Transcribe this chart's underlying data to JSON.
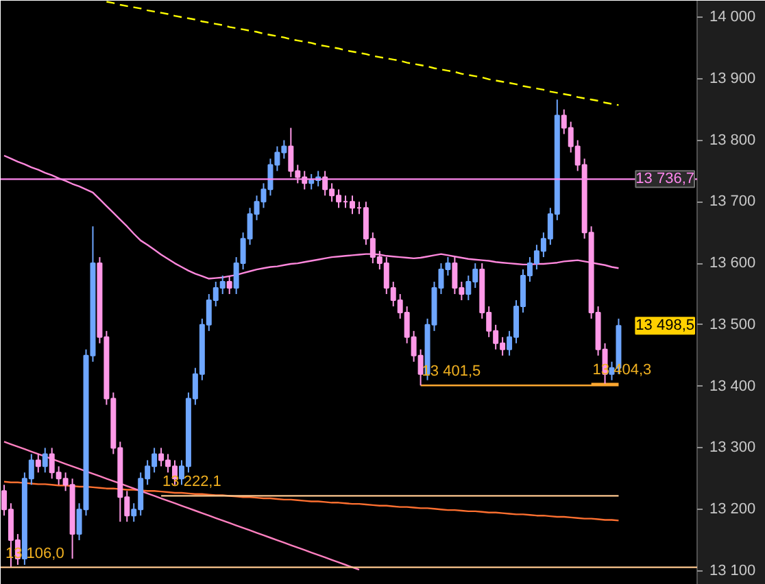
{
  "chart_data": {
    "type": "candlestick",
    "categories": [
      null,
      null,
      null,
      null,
      null,
      null,
      null,
      null,
      null,
      null,
      null,
      null,
      null,
      null,
      null,
      null,
      null,
      null,
      null,
      null,
      null,
      null,
      null,
      null,
      null,
      null,
      null,
      null,
      null,
      null,
      null,
      null,
      null,
      null,
      null,
      null,
      null,
      null,
      null,
      null,
      null,
      null,
      null,
      null,
      null,
      null,
      null,
      null,
      null,
      null,
      null,
      null,
      null,
      null,
      null,
      null,
      null,
      null,
      null,
      null,
      null,
      null,
      null,
      null,
      null,
      null,
      null,
      null,
      null,
      null,
      null,
      null,
      null,
      null,
      null,
      null,
      null,
      null,
      null,
      null,
      null,
      null,
      null,
      null,
      null,
      null,
      null,
      null,
      null,
      null,
      null
    ],
    "ohlc": [
      [
        13230,
        13240,
        13190,
        13200
      ],
      [
        13200,
        13210,
        13106,
        13150
      ],
      [
        13150,
        13160,
        13110,
        13120
      ],
      [
        13120,
        13260,
        13110,
        13250
      ],
      [
        13250,
        13290,
        13240,
        13280
      ],
      [
        13280,
        13290,
        13260,
        13270
      ],
      [
        13270,
        13300,
        13260,
        13290
      ],
      [
        13290,
        13300,
        13250,
        13260
      ],
      [
        13260,
        13270,
        13240,
        13250
      ],
      [
        13250,
        13260,
        13230,
        13240
      ],
      [
        13240,
        13250,
        13120,
        13160
      ],
      [
        13160,
        13210,
        13150,
        13200
      ],
      [
        13200,
        13460,
        13190,
        13450
      ],
      [
        13450,
        13660,
        13440,
        13600
      ],
      [
        13600,
        13610,
        13470,
        13480
      ],
      [
        13480,
        13490,
        13370,
        13380
      ],
      [
        13380,
        13390,
        13290,
        13300
      ],
      [
        13300,
        13310,
        13180,
        13220
      ],
      [
        13220,
        13230,
        13180,
        13190
      ],
      [
        13190,
        13210,
        13180,
        13200
      ],
      [
        13200,
        13260,
        13190,
        13250
      ],
      [
        13250,
        13280,
        13240,
        13270
      ],
      [
        13270,
        13300,
        13260,
        13290
      ],
      [
        13290,
        13300,
        13270,
        13280
      ],
      [
        13280,
        13290,
        13260,
        13270
      ],
      [
        13270,
        13280,
        13240,
        13250
      ],
      [
        13250,
        13280,
        13240,
        13270
      ],
      [
        13270,
        13390,
        13260,
        13380
      ],
      [
        13380,
        13430,
        13370,
        13420
      ],
      [
        13420,
        13510,
        13410,
        13500
      ],
      [
        13500,
        13550,
        13490,
        13540
      ],
      [
        13540,
        13570,
        13530,
        13560
      ],
      [
        13560,
        13580,
        13550,
        13570
      ],
      [
        13570,
        13580,
        13550,
        13560
      ],
      [
        13560,
        13610,
        13550,
        13600
      ],
      [
        13600,
        13650,
        13590,
        13640
      ],
      [
        13640,
        13690,
        13630,
        13680
      ],
      [
        13680,
        13710,
        13670,
        13700
      ],
      [
        13700,
        13730,
        13690,
        13720
      ],
      [
        13720,
        13770,
        13710,
        13760
      ],
      [
        13760,
        13790,
        13750,
        13780
      ],
      [
        13780,
        13800,
        13770,
        13790
      ],
      [
        13790,
        13820,
        13740,
        13750
      ],
      [
        13750,
        13760,
        13730,
        13740
      ],
      [
        13740,
        13750,
        13720,
        13730
      ],
      [
        13730,
        13745,
        13720,
        13735
      ],
      [
        13735,
        13750,
        13725,
        13740
      ],
      [
        13740,
        13750,
        13710,
        13720
      ],
      [
        13720,
        13730,
        13700,
        13710
      ],
      [
        13710,
        13720,
        13690,
        13700
      ],
      [
        13700,
        13710,
        13690,
        13700
      ],
      [
        13700,
        13710,
        13680,
        13690
      ],
      [
        13690,
        13700,
        13680,
        13690
      ],
      [
        13690,
        13700,
        13630,
        13640
      ],
      [
        13640,
        13650,
        13600,
        13610
      ],
      [
        13610,
        13620,
        13590,
        13600
      ],
      [
        13600,
        13610,
        13550,
        13560
      ],
      [
        13560,
        13570,
        13530,
        13540
      ],
      [
        13540,
        13550,
        13510,
        13520
      ],
      [
        13520,
        13530,
        13470,
        13480
      ],
      [
        13480,
        13490,
        13440,
        13450
      ],
      [
        13450,
        13460,
        13401.5,
        13420
      ],
      [
        13420,
        13510,
        13410,
        13500
      ],
      [
        13500,
        13570,
        13490,
        13560
      ],
      [
        13560,
        13600,
        13550,
        13590
      ],
      [
        13590,
        13610,
        13580,
        13600
      ],
      [
        13600,
        13610,
        13550,
        13560
      ],
      [
        13560,
        13570,
        13540,
        13550
      ],
      [
        13550,
        13580,
        13540,
        13570
      ],
      [
        13570,
        13600,
        13560,
        13590
      ],
      [
        13590,
        13600,
        13510,
        13520
      ],
      [
        13520,
        13530,
        13480,
        13490
      ],
      [
        13490,
        13500,
        13460,
        13470
      ],
      [
        13470,
        13480,
        13450,
        13460
      ],
      [
        13460,
        13490,
        13450,
        13480
      ],
      [
        13480,
        13540,
        13470,
        13530
      ],
      [
        13530,
        13590,
        13520,
        13580
      ],
      [
        13580,
        13610,
        13570,
        13600
      ],
      [
        13600,
        13630,
        13590,
        13620
      ],
      [
        13620,
        13650,
        13610,
        13640
      ],
      [
        13640,
        13690,
        13630,
        13680
      ],
      [
        13680,
        13866,
        13670,
        13840
      ],
      [
        13840,
        13850,
        13810,
        13820
      ],
      [
        13820,
        13830,
        13780,
        13790
      ],
      [
        13790,
        13800,
        13750,
        13760
      ],
      [
        13760,
        13770,
        13640,
        13650
      ],
      [
        13650,
        13660,
        13510,
        13520
      ],
      [
        13520,
        13530,
        13450,
        13460
      ],
      [
        13460,
        13470,
        13404.3,
        13420
      ],
      [
        13420,
        13440,
        13410,
        13430
      ],
      [
        13430,
        13510,
        13420,
        13498.5
      ]
    ],
    "colors": [
      "#ff99e8",
      "#ff99e8",
      "#ff99e8",
      "#6ea6ff",
      "#6ea6ff",
      "#ff99e8",
      "#6ea6ff",
      "#ff99e8",
      "#ff99e8",
      "#ff99e8",
      "#ff99e8",
      "#6ea6ff",
      "#6ea6ff",
      "#6ea6ff",
      "#ff99e8",
      "#ff99e8",
      "#ff99e8",
      "#ff99e8",
      "#ff99e8",
      "#6ea6ff",
      "#6ea6ff",
      "#6ea6ff",
      "#6ea6ff",
      "#ff99e8",
      "#ff99e8",
      "#ff99e8",
      "#6ea6ff",
      "#6ea6ff",
      "#6ea6ff",
      "#6ea6ff",
      "#6ea6ff",
      "#6ea6ff",
      "#6ea6ff",
      "#ff99e8",
      "#6ea6ff",
      "#6ea6ff",
      "#6ea6ff",
      "#6ea6ff",
      "#6ea6ff",
      "#6ea6ff",
      "#6ea6ff",
      "#6ea6ff",
      "#ff99e8",
      "#ff99e8",
      "#ff99e8",
      "#6ea6ff",
      "#6ea6ff",
      "#ff99e8",
      "#ff99e8",
      "#ff99e8",
      "#ff99e8",
      "#ff99e8",
      "#ff99e8",
      "#ff99e8",
      "#ff99e8",
      "#ff99e8",
      "#ff99e8",
      "#ff99e8",
      "#ff99e8",
      "#ff99e8",
      "#ff99e8",
      "#ff99e8",
      "#6ea6ff",
      "#6ea6ff",
      "#6ea6ff",
      "#6ea6ff",
      "#ff99e8",
      "#ff99e8",
      "#6ea6ff",
      "#6ea6ff",
      "#ff99e8",
      "#ff99e8",
      "#ff99e8",
      "#ff99e8",
      "#6ea6ff",
      "#6ea6ff",
      "#6ea6ff",
      "#6ea6ff",
      "#6ea6ff",
      "#6ea6ff",
      "#6ea6ff",
      "#6ea6ff",
      "#ff99e8",
      "#ff99e8",
      "#ff99e8",
      "#ff99e8",
      "#ff99e8",
      "#ff99e8",
      "#ff99e8",
      "#6ea6ff",
      "#6ea6ff"
    ],
    "series": [
      {
        "type": "line",
        "color": "#ff88dd",
        "values": [
          13775,
          13770,
          13765,
          13761,
          13756,
          13752,
          13747,
          13743,
          13738,
          13734,
          13729,
          13725,
          13720,
          13715,
          13704,
          13693,
          13682,
          13671,
          13660,
          13648,
          13637,
          13630,
          13622,
          13614,
          13607,
          13600,
          13594,
          13588,
          13583,
          13579,
          13575,
          13576,
          13577,
          13579,
          13581,
          13584,
          13587,
          13590,
          13592,
          13594,
          13595,
          13597,
          13599,
          13600,
          13602,
          13604,
          13606,
          13608,
          13610,
          13611,
          13612,
          13613,
          13614,
          13615,
          13615,
          13614,
          13612,
          13611,
          13610,
          13609,
          13608,
          13609,
          13611,
          13613,
          13615,
          13613,
          13611,
          13609,
          13607,
          13606,
          13605,
          13604,
          13602,
          13601,
          13600,
          13599,
          13598,
          13598,
          13599,
          13599,
          13600,
          13601,
          13603,
          13604,
          13605,
          13603,
          13601,
          13599,
          13597,
          13594,
          13592
        ]
      },
      {
        "type": "line",
        "color": "#ffff00",
        "line_style": "dashed",
        "values": [
          null,
          null,
          null,
          null,
          null,
          null,
          null,
          null,
          null,
          null,
          null,
          null,
          null,
          null,
          null,
          14025,
          14023,
          14020,
          14018,
          14016,
          14014,
          14011,
          14009,
          14007,
          14005,
          14002,
          14000,
          13998,
          13996,
          13993,
          13991,
          13989,
          13987,
          13984,
          13982,
          13980,
          13978,
          13976,
          13973,
          13971,
          13969,
          13967,
          13964,
          13962,
          13960,
          13958,
          13955,
          13953,
          13951,
          13949,
          13946,
          13944,
          13942,
          13940,
          13937,
          13935,
          13933,
          13931,
          13929,
          13926,
          13924,
          13922,
          13920,
          13917,
          13915,
          13913,
          13911,
          13908,
          13906,
          13904,
          13902,
          13899,
          13897,
          13895,
          13893,
          13891,
          13888,
          13886,
          13884,
          13882,
          13879,
          13877,
          13875,
          13873,
          13870,
          13868,
          13866,
          13864,
          13861,
          13859,
          13857
        ]
      },
      {
        "type": "line",
        "color": "#ff7030",
        "values": [
          13245,
          13244,
          13244,
          13243,
          13242,
          13241,
          13241,
          13240,
          13239,
          13239,
          13238,
          13237,
          13237,
          13236,
          13235,
          13234,
          13234,
          13233,
          13232,
          13232,
          13231,
          13230,
          13230,
          13229,
          13228,
          13227,
          13227,
          13226,
          13225,
          13225,
          13224,
          13223,
          13223,
          13222,
          13221,
          13220,
          13220,
          13219,
          13218,
          13218,
          13217,
          13216,
          13216,
          13215,
          13214,
          13213,
          13213,
          13212,
          13211,
          13211,
          13210,
          13209,
          13209,
          13208,
          13207,
          13206,
          13206,
          13205,
          13204,
          13204,
          13203,
          13202,
          13202,
          13201,
          13200,
          13199,
          13199,
          13198,
          13197,
          13197,
          13196,
          13195,
          13195,
          13194,
          13193,
          13192,
          13192,
          13191,
          13190,
          13190,
          13189,
          13188,
          13188,
          13187,
          13186,
          13185,
          13185,
          13184,
          13183,
          13183,
          13182
        ]
      },
      {
        "type": "line",
        "color": "#ff80c0",
        "values": [
          13310,
          13306,
          13302,
          13298,
          13294,
          13290,
          13286,
          13282,
          13278,
          13274,
          13270,
          13266,
          13262,
          13258,
          13254,
          13250,
          13246,
          13242,
          13238,
          13234,
          13230,
          13226,
          13222,
          13218,
          13214,
          13210,
          13206,
          13202,
          13198,
          13194,
          13190,
          13186,
          13182,
          13178,
          13174,
          13170,
          13166,
          13162,
          13158,
          13154,
          13150,
          13146,
          13142,
          13138,
          13134,
          13130,
          13126,
          13122,
          13118,
          13114,
          13110,
          13106,
          13102,
          null,
          null,
          null,
          null,
          null,
          null,
          null,
          null,
          null,
          null,
          null,
          null,
          null,
          null,
          null,
          null,
          null,
          null,
          null,
          null,
          null,
          null,
          null,
          null,
          null,
          null,
          null,
          null,
          null,
          null,
          null,
          null,
          null,
          null,
          null,
          null,
          null,
          null
        ]
      },
      {
        "type": "line",
        "color": "#ffa830",
        "values": [
          null,
          null,
          null,
          null,
          null,
          null,
          null,
          null,
          null,
          null,
          null,
          null,
          null,
          null,
          null,
          null,
          null,
          null,
          null,
          null,
          null,
          null,
          null,
          null,
          null,
          null,
          null,
          null,
          null,
          null,
          null,
          null,
          null,
          null,
          null,
          null,
          null,
          null,
          null,
          null,
          null,
          null,
          null,
          null,
          null,
          null,
          null,
          null,
          null,
          null,
          null,
          null,
          null,
          null,
          null,
          null,
          null,
          null,
          null,
          null,
          null,
          13401.5,
          13401.5,
          13401.5,
          13401.5,
          13401.5,
          13401.5,
          13401.5,
          13401.5,
          13401.5,
          13401.5,
          13401.5,
          13401.5,
          13401.5,
          13401.5,
          13401.5,
          13401.5,
          13401.5,
          13401.5,
          13401.5,
          13401.5,
          13401.5,
          13401.5,
          13401.5,
          13401.5,
          13401.5,
          13401.5,
          13401.5,
          13401.5,
          13401.5,
          13401.5
        ]
      },
      {
        "type": "line",
        "color": "#ffa830",
        "values": [
          null,
          null,
          null,
          null,
          null,
          null,
          null,
          null,
          null,
          null,
          null,
          null,
          null,
          null,
          null,
          null,
          null,
          null,
          null,
          null,
          null,
          null,
          null,
          null,
          null,
          null,
          null,
          null,
          null,
          null,
          null,
          null,
          null,
          null,
          null,
          null,
          null,
          null,
          null,
          null,
          null,
          null,
          null,
          null,
          null,
          null,
          null,
          null,
          null,
          null,
          null,
          null,
          null,
          null,
          null,
          null,
          null,
          null,
          null,
          null,
          null,
          null,
          null,
          null,
          null,
          null,
          null,
          null,
          null,
          null,
          null,
          null,
          null,
          null,
          null,
          null,
          null,
          null,
          null,
          null,
          null,
          null,
          null,
          null,
          null,
          null,
          13404.3,
          13404.3,
          13404.3,
          13404.3,
          13404.3
        ]
      },
      {
        "type": "line",
        "color": "#ffc890",
        "values": [
          null,
          null,
          null,
          null,
          null,
          null,
          null,
          null,
          null,
          null,
          null,
          null,
          null,
          null,
          null,
          null,
          null,
          null,
          null,
          null,
          null,
          null,
          null,
          13222.1,
          13222.1,
          13222.1,
          13222.1,
          13222.1,
          13222.1,
          13222.1,
          13222.1,
          13222.1,
          13222.1,
          13222.1,
          13222.1,
          13222.1,
          13222.1,
          13222.1,
          13222.1,
          13222.1,
          13222.1,
          13222.1,
          13222.1,
          13222.1,
          13222.1,
          13222.1,
          13222.1,
          13222.1,
          13222.1,
          13222.1,
          13222.1,
          13222.1,
          13222.1,
          13222.1,
          13222.1,
          13222.1,
          13222.1,
          13222.1,
          13222.1,
          13222.1,
          13222.1,
          13222.1,
          13222.1,
          13222.1,
          13222.1,
          13222.1,
          13222.1,
          13222.1,
          13222.1,
          13222.1,
          13222.1,
          13222.1,
          13222.1,
          13222.1,
          13222.1,
          13222.1,
          13222.1,
          13222.1,
          13222.1,
          13222.1,
          13222.1,
          13222.1,
          13222.1,
          13222.1,
          13222.1,
          13222.1,
          13222.1,
          13222.1,
          13222.1,
          13222.1,
          13222.1
        ]
      }
    ],
    "ref_lines": [
      {
        "axis": "y",
        "value": 13736.7,
        "label": "13 736,7",
        "color": "#ff88ee"
      },
      {
        "axis": "y",
        "value": 13106.0,
        "color": "#ffc890"
      }
    ],
    "annotations": [
      {
        "text": "13 401,5",
        "y": 13401.5
      },
      {
        "text": "13 404,3",
        "y": 13404.3
      },
      {
        "text": "13 222,1",
        "y": 13222.1
      },
      {
        "text": "13 106,0",
        "y": 13106.0
      },
      "13 498,5"
    ],
    "ylim": [
      13077.7,
      14026.7
    ],
    "yticks": [
      {
        "value": 13100,
        "label": "13 100"
      },
      {
        "value": 13200,
        "label": "13 200"
      },
      {
        "value": 13300,
        "label": "13 300"
      },
      {
        "value": 13400,
        "label": "13 400"
      },
      {
        "value": 13500,
        "label": "13 500"
      },
      {
        "value": 13600,
        "label": "13 600"
      },
      {
        "value": 13700,
        "label": "13 700"
      },
      {
        "value": 13800,
        "label": "13 800"
      },
      {
        "value": 13900,
        "label": "13 900"
      },
      {
        "value": 14000,
        "label": "14 000"
      }
    ],
    "tick_labels": "y"
  }
}
